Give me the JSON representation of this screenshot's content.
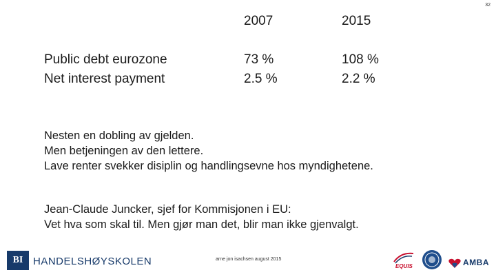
{
  "page_number": "32",
  "table": {
    "headers": [
      "2007",
      "2015"
    ],
    "rows": [
      {
        "label": "Public debt eurozone",
        "values": [
          "73 %",
          "108 %"
        ]
      },
      {
        "label": "Net interest payment",
        "values": [
          "2.5 %",
          "2.2 %"
        ]
      }
    ]
  },
  "paragraph1": [
    "Nesten en dobling av gjelden.",
    "Men betjeningen av den lettere.",
    "Lave renter svekker disiplin og handlingsevne hos myndighetene."
  ],
  "paragraph2": [
    "Jean-Claude Juncker, sjef for Kommisjonen i EU:",
    "Vet hva som skal til. Men gjør man det, blir man ikke gjenvalgt."
  ],
  "footer": {
    "logo_mark": "BI",
    "school_name": "HANDELSHØYSKOLEN",
    "author": "arne jon isachsen august 2015",
    "accreditations": [
      "EQUIS",
      "AMBA"
    ],
    "colors": {
      "brand": "#173a6a"
    }
  }
}
